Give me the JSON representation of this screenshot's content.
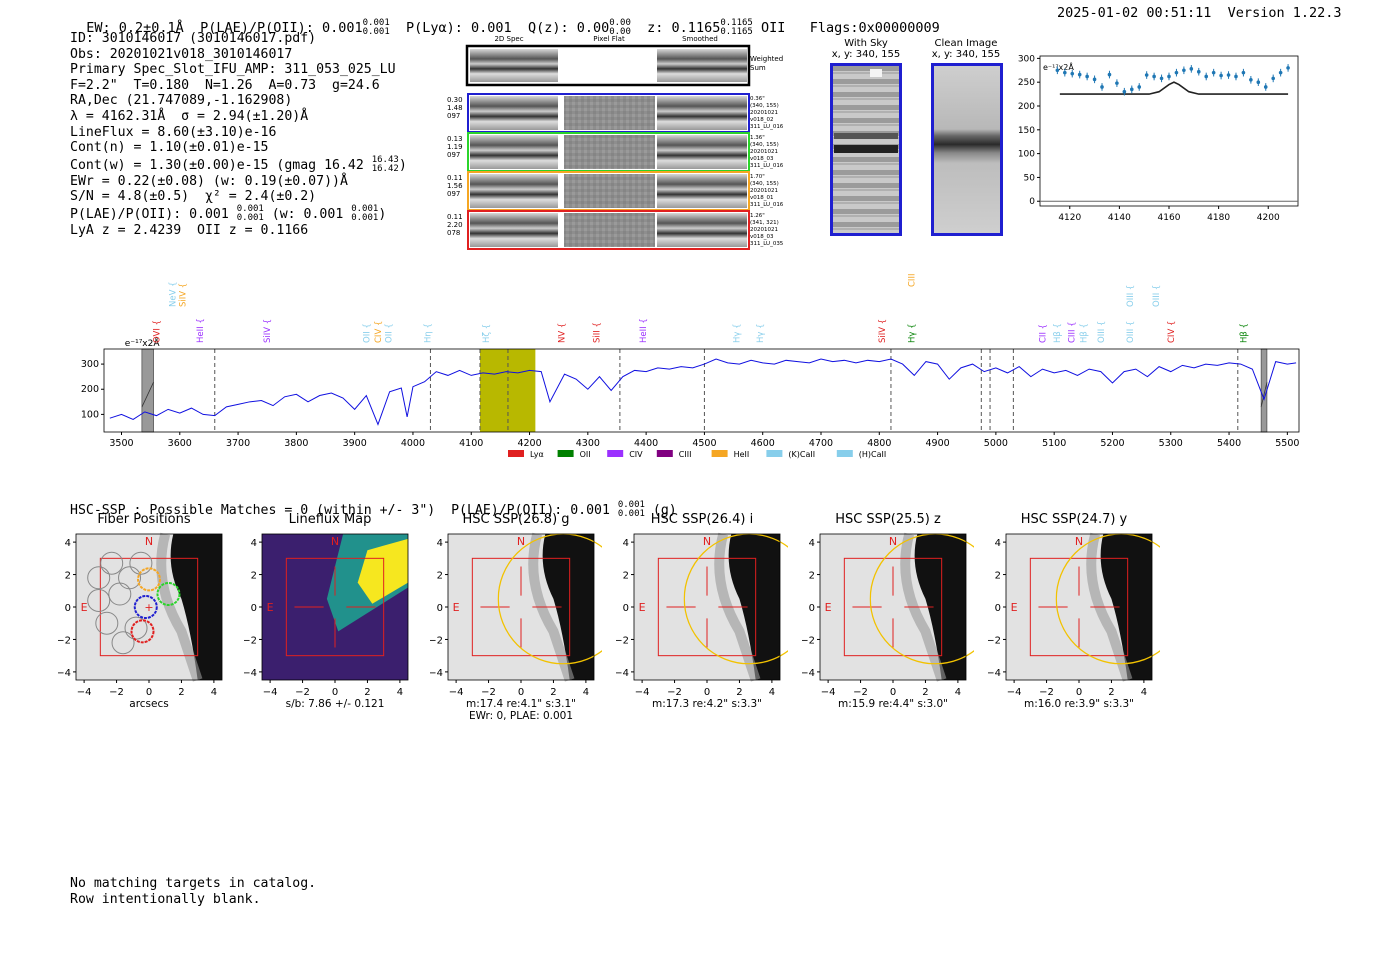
{
  "header": {
    "left_parts": [
      "EW: 0.2±0.1Å",
      "P(LAE)/P(OII): 0.001",
      "P(Lyα): 0.001",
      "Q(z): 0.00",
      "z: 0.1165",
      "OII",
      "Flags:0x00000009"
    ],
    "plae_sup": "0.001",
    "plae_sub": "0.001",
    "qz_sup": "0.00",
    "qz_sub": "0.00",
    "z_sup": "0.1165",
    "z_sub": "0.1165",
    "right": "2025-01-02 00:51:11  Version 1.22.3"
  },
  "info": {
    "lines": [
      "ID: 3010146017 (3010146017.pdf)",
      "Obs: 20201021v018_3010146017",
      "Primary Spec_Slot_IFU_AMP: 311_053_025_LU",
      "F=2.2\"  T=0.180  N=1.26  A=0.73  g=24.6",
      "RA,Dec (21.747089,-1.162908)",
      "λ = 4162.31Å  σ = 2.94(±1.20)Å",
      "LineFlux = 8.60(±3.10)e-16",
      "Cont(n) = 1.10(±0.01)e-15",
      "Cont(w) = 1.30(±0.00)e-15 (gmag 16.42",
      "EWr = 0.22(±0.08) (w: 0.19(±0.07))Å",
      "S/N = 4.8(±0.5)  χ² = 2.4(±0.2)",
      "P(LAE)/P(OII): 0.001",
      "LyA z = 2.4239  OII z = 0.1166"
    ],
    "gmag_sup": "16.43",
    "gmag_sub": "16.42",
    "plae_line_tail": "(w: 0.001",
    "plae_sup": "0.001",
    "plae_sub": "0.001",
    "plae_w_sup": "0.001",
    "plae_w_sub": "0.001"
  },
  "cutouts": {
    "col_headers": [
      "2D Spec",
      "Pixel Flat",
      "Smoothed"
    ],
    "weighted_sum": "Weighted\nSum",
    "rows": [
      {
        "left": [
          "0.30",
          "1.48",
          "097"
        ],
        "right": [
          "0.36\"",
          "(340, 155)",
          "20201021",
          "v018_02",
          "311_LU_016"
        ],
        "color": "#1f1fd0"
      },
      {
        "left": [
          "0.13",
          "1.19",
          "097"
        ],
        "right": [
          "1.36\"",
          "(340, 155)",
          "20201021",
          "v018_03",
          "311_LU_016"
        ],
        "color": "#2bd42b"
      },
      {
        "left": [
          "0.11",
          "1.56",
          "097"
        ],
        "right": [
          "1.70\"",
          "(340, 155)",
          "20201021",
          "v018_01",
          "311_LU_016"
        ],
        "color": "#f5a623"
      },
      {
        "left": [
          "0.11",
          "2.20",
          "078"
        ],
        "right": [
          "1.26\"",
          "(341, 321)",
          "20201021",
          "v018_03",
          "311_LU_035"
        ],
        "color": "#e02020"
      }
    ]
  },
  "sky_panels": {
    "with_sky": {
      "title": "With Sky",
      "coords": "x, y: 340, 155"
    },
    "clean": {
      "title": "Clean Image",
      "coords": "x, y: 340, 155"
    }
  },
  "zoom_plot": {
    "unit": "e⁻¹⁷x2Å",
    "chart_data": {
      "type": "scatter",
      "xlim": [
        4108,
        4212
      ],
      "ylim": [
        -10,
        305
      ],
      "xticks": [
        4120,
        4140,
        4160,
        4180,
        4200
      ],
      "yticks": [
        0,
        50,
        100,
        150,
        200,
        250,
        300
      ],
      "points_x": [
        4115,
        4118,
        4121,
        4124,
        4127,
        4130,
        4133,
        4136,
        4139,
        4142,
        4145,
        4148,
        4151,
        4154,
        4157,
        4160,
        4163,
        4166,
        4169,
        4172,
        4175,
        4178,
        4181,
        4184,
        4187,
        4190,
        4193,
        4196,
        4199,
        4202,
        4205,
        4208
      ],
      "points_y": [
        275,
        270,
        268,
        266,
        262,
        256,
        240,
        266,
        248,
        230,
        235,
        240,
        265,
        262,
        258,
        262,
        270,
        275,
        278,
        272,
        262,
        270,
        264,
        265,
        262,
        270,
        255,
        250,
        240,
        258,
        270,
        280
      ],
      "fit_x": [
        4116,
        4152,
        4156,
        4160,
        4162,
        4164,
        4168,
        4172,
        4208
      ],
      "fit_y": [
        225,
        225,
        230,
        245,
        250,
        245,
        230,
        225,
        225
      ]
    }
  },
  "main_spectrum": {
    "unit": "e⁻¹⁷x2Å",
    "chart_data": {
      "type": "line",
      "xlim": [
        3470,
        5520
      ],
      "ylim": [
        30,
        360
      ],
      "xticks": [
        3500,
        3600,
        3700,
        3800,
        3900,
        4000,
        4100,
        4200,
        4300,
        4400,
        4500,
        4600,
        4700,
        4800,
        4900,
        5000,
        5100,
        5200,
        5300,
        5400,
        5500
      ],
      "yticks": [
        100,
        200,
        300
      ],
      "highlight": [
        4115,
        4210
      ],
      "masks": [
        [
          3535,
          3555
        ],
        [
          5455,
          5465
        ]
      ],
      "dashed_lines": [
        3660,
        4030,
        4115,
        4163,
        4355,
        4500,
        4820,
        4975,
        4990,
        5030,
        5415
      ],
      "spectrum": [
        [
          3480,
          85
        ],
        [
          3500,
          100
        ],
        [
          3520,
          80
        ],
        [
          3540,
          110
        ],
        [
          3560,
          95
        ],
        [
          3580,
          120
        ],
        [
          3600,
          105
        ],
        [
          3620,
          125
        ],
        [
          3640,
          100
        ],
        [
          3660,
          95
        ],
        [
          3680,
          130
        ],
        [
          3700,
          140
        ],
        [
          3720,
          150
        ],
        [
          3740,
          155
        ],
        [
          3760,
          135
        ],
        [
          3780,
          170
        ],
        [
          3800,
          180
        ],
        [
          3820,
          150
        ],
        [
          3840,
          175
        ],
        [
          3860,
          185
        ],
        [
          3880,
          165
        ],
        [
          3900,
          120
        ],
        [
          3920,
          175
        ],
        [
          3940,
          60
        ],
        [
          3960,
          190
        ],
        [
          3980,
          205
        ],
        [
          3990,
          90
        ],
        [
          4000,
          210
        ],
        [
          4020,
          230
        ],
        [
          4040,
          270
        ],
        [
          4060,
          255
        ],
        [
          4080,
          275
        ],
        [
          4100,
          255
        ],
        [
          4120,
          265
        ],
        [
          4140,
          260
        ],
        [
          4160,
          270
        ],
        [
          4180,
          265
        ],
        [
          4200,
          275
        ],
        [
          4220,
          270
        ],
        [
          4235,
          150
        ],
        [
          4260,
          260
        ],
        [
          4280,
          240
        ],
        [
          4300,
          200
        ],
        [
          4320,
          250
        ],
        [
          4340,
          195
        ],
        [
          4360,
          250
        ],
        [
          4380,
          275
        ],
        [
          4400,
          270
        ],
        [
          4420,
          285
        ],
        [
          4440,
          280
        ],
        [
          4460,
          290
        ],
        [
          4480,
          285
        ],
        [
          4500,
          300
        ],
        [
          4520,
          320
        ],
        [
          4540,
          305
        ],
        [
          4560,
          300
        ],
        [
          4580,
          315
        ],
        [
          4600,
          305
        ],
        [
          4620,
          300
        ],
        [
          4640,
          315
        ],
        [
          4660,
          310
        ],
        [
          4680,
          305
        ],
        [
          4700,
          320
        ],
        [
          4720,
          310
        ],
        [
          4740,
          315
        ],
        [
          4760,
          305
        ],
        [
          4780,
          315
        ],
        [
          4800,
          310
        ],
        [
          4820,
          320
        ],
        [
          4840,
          300
        ],
        [
          4860,
          255
        ],
        [
          4880,
          310
        ],
        [
          4900,
          300
        ],
        [
          4920,
          240
        ],
        [
          4940,
          285
        ],
        [
          4960,
          300
        ],
        [
          4980,
          270
        ],
        [
          5000,
          285
        ],
        [
          5020,
          265
        ],
        [
          5040,
          290
        ],
        [
          5060,
          250
        ],
        [
          5080,
          280
        ],
        [
          5100,
          265
        ],
        [
          5120,
          275
        ],
        [
          5140,
          255
        ],
        [
          5160,
          280
        ],
        [
          5180,
          270
        ],
        [
          5200,
          225
        ],
        [
          5220,
          270
        ],
        [
          5240,
          280
        ],
        [
          5260,
          250
        ],
        [
          5280,
          290
        ],
        [
          5300,
          270
        ],
        [
          5320,
          295
        ],
        [
          5340,
          285
        ],
        [
          5360,
          300
        ],
        [
          5380,
          295
        ],
        [
          5400,
          305
        ],
        [
          5420,
          300
        ],
        [
          5440,
          280
        ],
        [
          5460,
          160
        ],
        [
          5480,
          310
        ],
        [
          5500,
          300
        ],
        [
          5515,
          305
        ]
      ]
    },
    "emission_lines": [
      {
        "label": "OVI",
        "x": 3560,
        "color": "#e02020",
        "row": 0
      },
      {
        "label": "SiIV",
        "x": 3605,
        "color": "#f5a623",
        "row": 1
      },
      {
        "label": "NeV",
        "x": 3605,
        "color": "#87ceeb",
        "row": 1,
        "off": -10
      },
      {
        "label": "HeII",
        "x": 3635,
        "color": "#9b30ff",
        "row": 0
      },
      {
        "label": "SiIV",
        "x": 3750,
        "color": "#9b30ff",
        "row": 0
      },
      {
        "label": "OII",
        "x": 3920,
        "color": "#87ceeb",
        "row": 0
      },
      {
        "label": "CIV",
        "x": 3940,
        "color": "#f5a623",
        "row": 0
      },
      {
        "label": "OII",
        "x": 3958,
        "color": "#87ceeb",
        "row": 0
      },
      {
        "label": "Hη",
        "x": 4025,
        "color": "#87ceeb",
        "row": 0
      },
      {
        "label": "Hζ",
        "x": 4125,
        "color": "#87ceeb",
        "row": 0
      },
      {
        "label": "NV",
        "x": 4255,
        "color": "#e02020",
        "row": 0
      },
      {
        "label": "SiII",
        "x": 4315,
        "color": "#e02020",
        "row": 0
      },
      {
        "label": "HeII",
        "x": 4395,
        "color": "#9b30ff",
        "row": 0
      },
      {
        "label": "Hγ",
        "x": 4555,
        "color": "#87ceeb",
        "row": 0
      },
      {
        "label": "Hγ",
        "x": 4595,
        "color": "#87ceeb",
        "row": 0
      },
      {
        "label": "SiIV",
        "x": 4805,
        "color": "#e02020",
        "row": 0
      },
      {
        "label": "Hγ",
        "x": 4855,
        "color": "#008000",
        "row": 0
      },
      {
        "label": "CIII",
        "x": 4855,
        "color": "#f5a623",
        "row": 2
      },
      {
        "label": "CII",
        "x": 5080,
        "color": "#9b30ff",
        "row": 0
      },
      {
        "label": "Hβ",
        "x": 5105,
        "color": "#87ceeb",
        "row": 0
      },
      {
        "label": "CIII",
        "x": 5130,
        "color": "#9b30ff",
        "row": 0
      },
      {
        "label": "Hβ",
        "x": 5150,
        "color": "#87ceeb",
        "row": 0
      },
      {
        "label": "OIII",
        "x": 5180,
        "color": "#87ceeb",
        "row": 0
      },
      {
        "label": "OIII",
        "x": 5230,
        "color": "#87ceeb",
        "row": 0
      },
      {
        "label": "OIII",
        "x": 5230,
        "color": "#87ceeb",
        "row": 1
      },
      {
        "label": "OIII",
        "x": 5275,
        "color": "#87ceeb",
        "row": 1
      },
      {
        "label": "CIV",
        "x": 5300,
        "color": "#e02020",
        "row": 0
      },
      {
        "label": "Hβ",
        "x": 5425,
        "color": "#008000",
        "row": 0
      }
    ],
    "legend": [
      {
        "label": "Lyα",
        "color": "#e02020"
      },
      {
        "label": "OII",
        "color": "#008000"
      },
      {
        "label": "CIV",
        "color": "#9b30ff"
      },
      {
        "label": "CIII",
        "color": "#800080"
      },
      {
        "label": "HeII",
        "color": "#f5a623"
      },
      {
        "label": "(K)CaII",
        "color": "#87ceeb"
      },
      {
        "label": "(H)CaII",
        "color": "#87ceeb"
      }
    ]
  },
  "hsc": {
    "summary": "HSC-SSP : Possible Matches = 0 (within +/- 3\")  P(LAE)/P(OII): 0.001",
    "summary_sup": "0.001",
    "summary_sub": "0.001",
    "summary_tail": "(g)",
    "ticks": [
      "4",
      "2",
      "0",
      "−2",
      "−4"
    ],
    "xticks": [
      "−4",
      "−2",
      "0",
      "2",
      "4"
    ],
    "panels": [
      {
        "title": "Fiber Positions",
        "caption1": "arcsecs",
        "caption2": "",
        "kind": "fiber"
      },
      {
        "title": "Lineflux Map",
        "caption1": "s/b: 7.86 +/- 0.121",
        "caption2": "",
        "kind": "lineflux"
      },
      {
        "title": "HSC SSP(26.8) g",
        "caption1": "m:17.4  re:4.1\"  s:3.1\"",
        "caption2": "EWr: 0, PLAE: 0.001",
        "kind": "hsc"
      },
      {
        "title": "HSC SSP(26.4) i",
        "caption1": "m:17.3  re:4.2\"  s:3.3\"",
        "caption2": "",
        "kind": "hsc"
      },
      {
        "title": "HSC SSP(25.5) z",
        "caption1": "m:15.9  re:4.4\"  s:3.0\"",
        "caption2": "",
        "kind": "hsc"
      },
      {
        "title": "HSC SSP(24.7) y",
        "caption1": "m:16.0  re:3.9\"  s:3.3\"",
        "caption2": "",
        "kind": "hsc"
      }
    ],
    "n_label": "N",
    "e_label": "E"
  },
  "footer": {
    "line1": "No matching targets in catalog.",
    "line2": "Row intentionally blank."
  }
}
